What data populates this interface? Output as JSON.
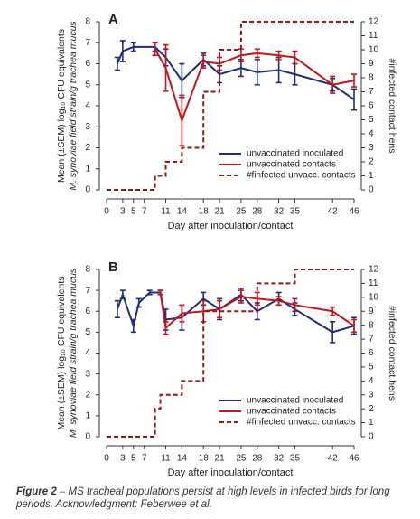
{
  "chart_data": [
    {
      "type": "line",
      "title": "A",
      "x_label": "Day after inoculation/contact",
      "y_label": [
        "Mean (±SEM) log₁₀ CFU equivalents",
        "M. synoviae field strain/g trachea mucus"
      ],
      "y2_label": "#infected contact hens",
      "xlim": [
        0,
        46
      ],
      "xticks": [
        0,
        3,
        5,
        7,
        11,
        14,
        18,
        21,
        25,
        28,
        32,
        35,
        42,
        46
      ],
      "ylim": [
        0,
        8
      ],
      "yticks": [
        0,
        1,
        2,
        3,
        4,
        5,
        6,
        7,
        8
      ],
      "y2lim": [
        0,
        12
      ],
      "y2ticks": [
        0,
        1,
        2,
        3,
        4,
        5,
        6,
        7,
        8,
        9,
        10,
        11,
        12
      ],
      "series": [
        {
          "name": "unvaccinated inoculated",
          "color": "#1f2e7a",
          "x": [
            2,
            3,
            5,
            9,
            11,
            14,
            18,
            21,
            25,
            28,
            32,
            35,
            42,
            46
          ],
          "values": [
            6.0,
            6.6,
            6.8,
            6.8,
            6.3,
            5.2,
            6.2,
            5.5,
            5.8,
            5.6,
            5.7,
            5.5,
            5.0,
            4.3
          ],
          "errors": [
            0.3,
            0.5,
            0.2,
            0.2,
            0.4,
            0.8,
            0.3,
            0.4,
            0.4,
            0.6,
            0.6,
            0.5,
            0.3,
            0.5
          ]
        },
        {
          "name": "unvaccinated contacts",
          "color": "#c4161c",
          "x": [
            9,
            11,
            14,
            18,
            21,
            25,
            28,
            32,
            35,
            42,
            46
          ],
          "values": [
            6.7,
            5.8,
            3.3,
            6.1,
            6.0,
            6.4,
            6.5,
            6.4,
            6.3,
            5.0,
            5.2
          ],
          "errors": [
            0.3,
            1.1,
            1.2,
            0.3,
            0.3,
            0.3,
            0.2,
            0.2,
            0.3,
            0.4,
            0.3
          ]
        },
        {
          "name": "#finfected unvacc. contacts",
          "color": "#8b1a1a",
          "axis": "y2",
          "dash": true,
          "step": true,
          "x": [
            0,
            9,
            11,
            14,
            18,
            21,
            25,
            46
          ],
          "values": [
            0,
            1,
            2,
            3,
            7,
            10,
            12,
            12
          ]
        }
      ]
    },
    {
      "type": "line",
      "title": "B",
      "x_label": "Day after inoculation/contact",
      "y_label": [
        "Mean (±SEM) log₁₀ CFU equivalents",
        "M. synoviae field strain/g trachea mucus"
      ],
      "y2_label": "#infected contact hens",
      "xlim": [
        0,
        46
      ],
      "xticks": [
        0,
        3,
        5,
        7,
        11,
        14,
        18,
        21,
        25,
        28,
        32,
        35,
        42,
        46
      ],
      "ylim": [
        0,
        8
      ],
      "yticks": [
        0,
        1,
        2,
        3,
        4,
        5,
        6,
        7,
        8
      ],
      "y2lim": [
        0,
        12
      ],
      "y2ticks": [
        0,
        1,
        2,
        3,
        4,
        5,
        6,
        7,
        8,
        9,
        10,
        11,
        12
      ],
      "series": [
        {
          "name": "unvaccinated inoculated",
          "color": "#1f2e7a",
          "x": [
            2,
            3,
            5,
            6,
            8,
            10,
            11,
            14,
            18,
            21,
            25,
            28,
            32,
            35,
            42,
            46
          ],
          "values": [
            6.1,
            6.8,
            5.3,
            6.4,
            6.9,
            6.9,
            5.6,
            5.7,
            6.6,
            6.1,
            6.8,
            6.0,
            6.6,
            6.1,
            5.0,
            5.3
          ],
          "errors": [
            0.4,
            0.2,
            0.3,
            0.2,
            0.1,
            0.1,
            0.5,
            0.6,
            0.3,
            0.5,
            0.3,
            0.4,
            0.3,
            0.3,
            0.5,
            0.4
          ]
        },
        {
          "name": "unvaccinated contacts",
          "color": "#c4161c",
          "x": [
            10,
            11,
            14,
            18,
            21,
            25,
            28,
            32,
            35,
            42,
            46
          ],
          "values": [
            6.9,
            5.2,
            5.9,
            6.0,
            6.1,
            6.7,
            6.6,
            6.5,
            6.3,
            6.0,
            5.3
          ],
          "errors": [
            0.1,
            0.3,
            0.4,
            0.5,
            0.4,
            0.3,
            0.3,
            0.2,
            0.3,
            0.2,
            0.3
          ]
        },
        {
          "name": "#finfected unvacc. contacts",
          "color": "#8b1a1a",
          "axis": "y2",
          "dash": true,
          "step": true,
          "x": [
            0,
            9,
            10,
            14,
            18,
            28,
            35,
            46
          ],
          "values": [
            0,
            2,
            3,
            4,
            9,
            11,
            12,
            12
          ]
        }
      ]
    }
  ],
  "caption": {
    "label": "Figure 2",
    "text": "– MS tracheal populations persist at high levels in infected birds for long periods. Acknowledgment: Feberwee et al."
  }
}
